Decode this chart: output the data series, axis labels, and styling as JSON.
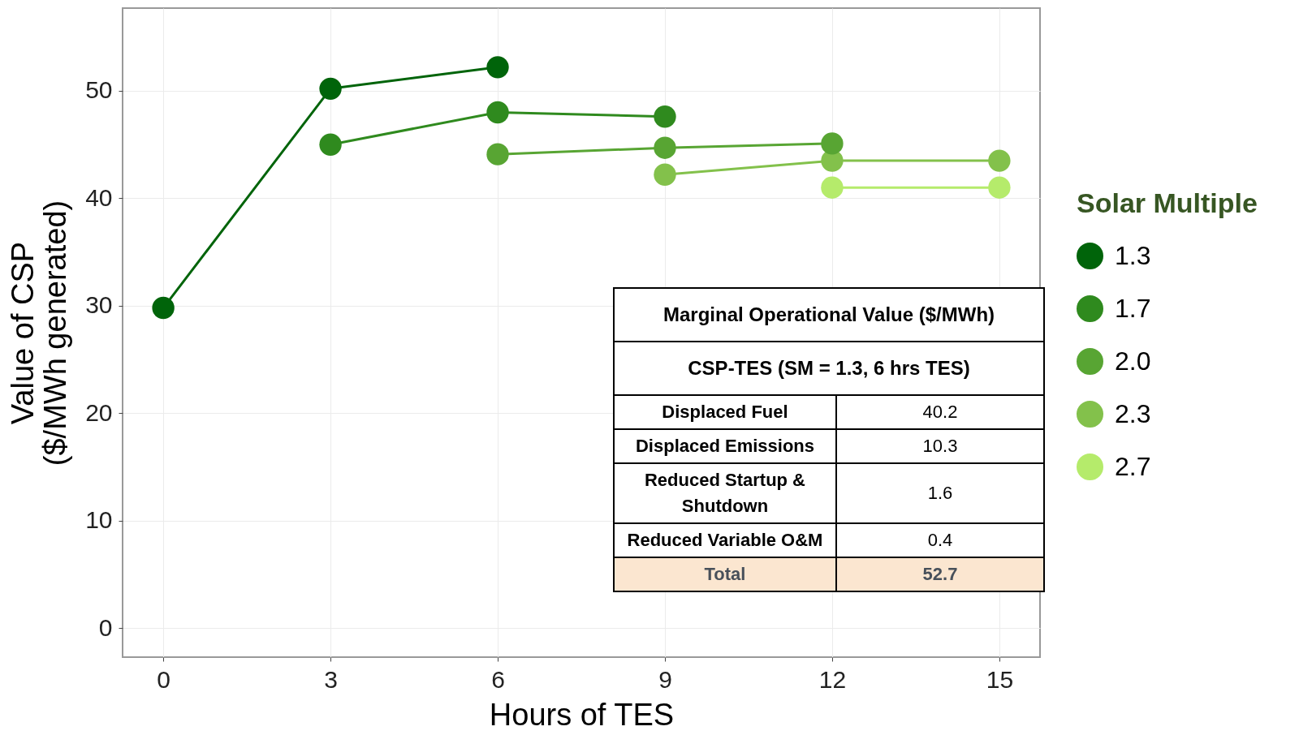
{
  "chart_data": {
    "type": "line",
    "xlabel": "Hours of TES",
    "ylabel": "Value of CSP\n($/MWh generated)",
    "legend_title": "Solar Multiple",
    "x": [
      0,
      3,
      6,
      9,
      12,
      15
    ],
    "series": [
      {
        "name": "1.3",
        "color": "#00640a",
        "values": [
          29.8,
          50.2,
          52.2,
          null,
          null,
          null
        ]
      },
      {
        "name": "1.7",
        "color": "#2f8a1e",
        "values": [
          null,
          45.0,
          48.0,
          47.6,
          null,
          null
        ]
      },
      {
        "name": "2.0",
        "color": "#58a533",
        "values": [
          null,
          null,
          44.1,
          44.7,
          45.1,
          null
        ]
      },
      {
        "name": "2.3",
        "color": "#83c14b",
        "values": [
          null,
          null,
          null,
          42.2,
          43.5,
          43.5
        ]
      },
      {
        "name": "2.7",
        "color": "#b5eb6b",
        "values": [
          null,
          null,
          null,
          null,
          41.0,
          41.0
        ]
      }
    ],
    "xlim": [
      -0.73,
      15.73
    ],
    "ylim": [
      -2.7,
      57.7
    ],
    "xticks": [
      0,
      3,
      6,
      9,
      12,
      15
    ],
    "yticks": [
      0,
      10,
      20,
      30,
      40,
      50
    ],
    "grid": true,
    "legend": "right",
    "marker": "circle",
    "line_style": "solid",
    "annotations": [
      "Marginal Operational Value ($/MWh)",
      "CSP-TES (SM = 1.3, 6 hrs TES)",
      "Displaced Fuel",
      "40.2",
      "Displaced Emissions",
      "10.3",
      "Reduced Startup & Shutdown",
      "1.6",
      "Reduced Variable O&M",
      "0.4",
      "Total",
      "52.7"
    ]
  }
}
